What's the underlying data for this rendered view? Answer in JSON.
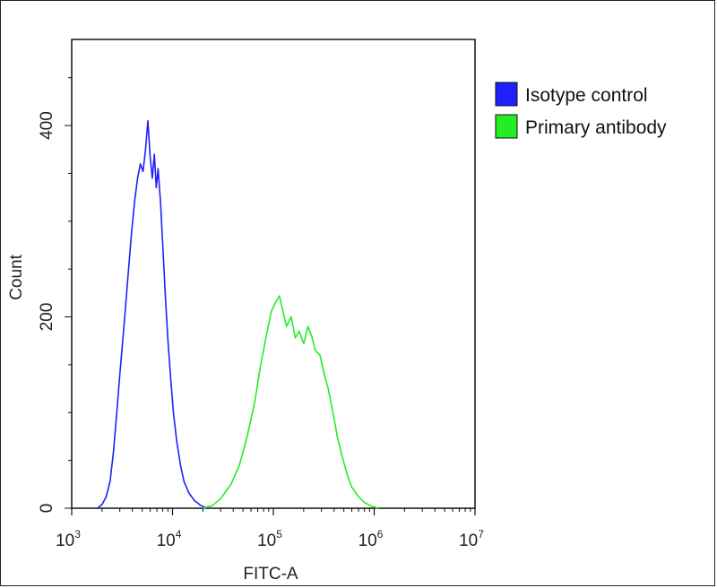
{
  "chart_data": {
    "type": "line",
    "title": "",
    "xlabel": "FITC-A",
    "ylabel": "Count",
    "x_scale": "log",
    "xlim": [
      1000,
      10000000
    ],
    "ylim": [
      0,
      490
    ],
    "grid": false,
    "legend_position": "top-right",
    "x_ticks": [
      {
        "value": 1000,
        "base": "10",
        "exp": "3"
      },
      {
        "value": 10000,
        "base": "10",
        "exp": "4"
      },
      {
        "value": 100000,
        "base": "10",
        "exp": "5"
      },
      {
        "value": 1000000,
        "base": "10",
        "exp": "6"
      },
      {
        "value": 10000000,
        "base": "10",
        "exp": "7"
      }
    ],
    "y_ticks": [
      {
        "value": 0,
        "label": "0"
      },
      {
        "value": 200,
        "label": "200"
      },
      {
        "value": 400,
        "label": "400"
      }
    ],
    "series": [
      {
        "name": "Isotype control",
        "color": "#1f1fff",
        "points": [
          [
            1800,
            0
          ],
          [
            2000,
            4
          ],
          [
            2200,
            12
          ],
          [
            2400,
            28
          ],
          [
            2600,
            60
          ],
          [
            2800,
            100
          ],
          [
            3000,
            140
          ],
          [
            3300,
            190
          ],
          [
            3600,
            240
          ],
          [
            3900,
            285
          ],
          [
            4200,
            320
          ],
          [
            4500,
            345
          ],
          [
            4800,
            360
          ],
          [
            5100,
            352
          ],
          [
            5400,
            375
          ],
          [
            5700,
            405
          ],
          [
            6000,
            368
          ],
          [
            6300,
            345
          ],
          [
            6600,
            370
          ],
          [
            6900,
            335
          ],
          [
            7200,
            355
          ],
          [
            7600,
            320
          ],
          [
            8000,
            275
          ],
          [
            8500,
            220
          ],
          [
            9000,
            175
          ],
          [
            9600,
            135
          ],
          [
            10200,
            100
          ],
          [
            11000,
            70
          ],
          [
            12000,
            45
          ],
          [
            13000,
            28
          ],
          [
            14500,
            16
          ],
          [
            16500,
            8
          ],
          [
            19000,
            3
          ],
          [
            22000,
            0
          ]
        ]
      },
      {
        "name": "Primary antibody",
        "color": "#22ee22",
        "points": [
          [
            20000,
            0
          ],
          [
            25000,
            3
          ],
          [
            30000,
            10
          ],
          [
            38000,
            25
          ],
          [
            46000,
            45
          ],
          [
            55000,
            75
          ],
          [
            65000,
            110
          ],
          [
            75000,
            150
          ],
          [
            85000,
            180
          ],
          [
            95000,
            205
          ],
          [
            105000,
            215
          ],
          [
            115000,
            222
          ],
          [
            125000,
            205
          ],
          [
            135000,
            190
          ],
          [
            150000,
            200
          ],
          [
            165000,
            178
          ],
          [
            180000,
            185
          ],
          [
            200000,
            172
          ],
          [
            220000,
            190
          ],
          [
            240000,
            180
          ],
          [
            260000,
            165
          ],
          [
            290000,
            160
          ],
          [
            320000,
            140
          ],
          [
            350000,
            125
          ],
          [
            390000,
            100
          ],
          [
            430000,
            75
          ],
          [
            480000,
            55
          ],
          [
            540000,
            35
          ],
          [
            600000,
            22
          ],
          [
            700000,
            12
          ],
          [
            800000,
            6
          ],
          [
            950000,
            2
          ],
          [
            1100000,
            0
          ]
        ]
      }
    ]
  }
}
